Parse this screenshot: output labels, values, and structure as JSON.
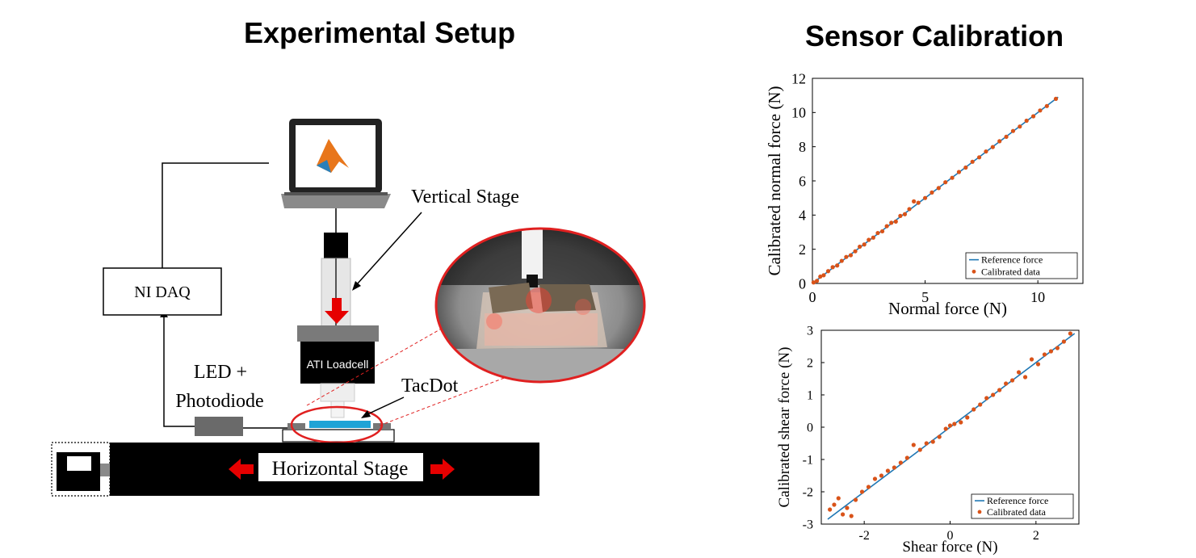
{
  "headings": {
    "setup": "Experimental Setup",
    "calibration": "Sensor Calibration"
  },
  "setup_labels": {
    "vertical_stage": "Vertical Stage",
    "ni_daq": "NI DAQ",
    "led_line1": "LED +",
    "led_line2": "Photodiode",
    "ati_loadcell": "ATI Loadcell",
    "tacdot": "TacDot",
    "horizontal_stage": "Horizontal Stage"
  },
  "icons": [
    "matlab-logo-icon",
    "down-arrow-icon",
    "left-arrow-icon",
    "right-arrow-icon",
    "motor-icon"
  ],
  "colors": {
    "reference_line": "#1f77b4",
    "calibrated_points": "#d95319",
    "arrow_red": "#e60000",
    "tacdot_blue": "#1fa3d6",
    "callout_red": "#e02020"
  },
  "chart_data": [
    {
      "type": "scatter",
      "xlabel": "Normal force (N)",
      "ylabel": "Calibrated normal force (N)",
      "xlim": [
        0,
        12
      ],
      "ylim": [
        0,
        12
      ],
      "xticks": [
        "0",
        "5",
        "10"
      ],
      "xtick_values": [
        0,
        5,
        10
      ],
      "yticks": [
        "0",
        "2",
        "4",
        "6",
        "8",
        "10",
        "12"
      ],
      "ytick_values": [
        0,
        2,
        4,
        6,
        8,
        10,
        12
      ],
      "legend_position": "bottom-right",
      "series": [
        {
          "name": "Reference force",
          "kind": "line",
          "x": [
            0,
            10.9
          ],
          "y": [
            0,
            10.9
          ]
        },
        {
          "name": "Calibrated data",
          "kind": "points",
          "x": [
            0.05,
            0.2,
            0.35,
            0.5,
            0.7,
            0.9,
            1.1,
            1.3,
            1.5,
            1.7,
            1.9,
            2.1,
            2.3,
            2.5,
            2.7,
            2.9,
            3.1,
            3.3,
            3.5,
            3.7,
            3.9,
            4.1,
            4.3,
            4.5,
            4.7,
            5.0,
            5.3,
            5.6,
            5.9,
            6.2,
            6.5,
            6.8,
            7.1,
            7.4,
            7.7,
            8.0,
            8.3,
            8.6,
            8.9,
            9.2,
            9.5,
            9.8,
            10.1,
            10.4,
            10.8
          ],
          "y": [
            0.06,
            0.15,
            0.4,
            0.48,
            0.72,
            0.95,
            1.05,
            1.32,
            1.55,
            1.65,
            1.88,
            2.15,
            2.28,
            2.55,
            2.68,
            2.95,
            3.05,
            3.35,
            3.55,
            3.62,
            3.95,
            4.05,
            4.35,
            4.8,
            4.72,
            5.0,
            5.32,
            5.58,
            5.92,
            6.18,
            6.52,
            6.78,
            7.12,
            7.38,
            7.72,
            7.98,
            8.32,
            8.58,
            8.92,
            9.18,
            9.52,
            9.78,
            10.12,
            10.38,
            10.8
          ]
        }
      ]
    },
    {
      "type": "scatter",
      "xlabel": "Shear force (N)",
      "ylabel": "Calibrated shear force (N)",
      "xlim": [
        -3,
        3
      ],
      "ylim": [
        -3,
        3
      ],
      "xticks": [
        "-2",
        "0",
        "2"
      ],
      "xtick_values": [
        -2,
        0,
        2
      ],
      "yticks": [
        "-3",
        "-2",
        "-1",
        "0",
        "1",
        "2",
        "3"
      ],
      "ytick_values": [
        -3,
        -2,
        -1,
        0,
        1,
        2,
        3
      ],
      "legend_position": "bottom-right",
      "series": [
        {
          "name": "Reference force",
          "kind": "line",
          "x": [
            -2.85,
            2.9
          ],
          "y": [
            -2.85,
            2.9
          ]
        },
        {
          "name": "Calibrated data",
          "kind": "points",
          "x": [
            -2.8,
            -2.7,
            -2.6,
            -2.5,
            -2.4,
            -2.3,
            -2.2,
            -2.05,
            -1.9,
            -1.75,
            -1.6,
            -1.45,
            -1.3,
            -1.15,
            -1.0,
            -0.85,
            -0.7,
            -0.55,
            -0.4,
            -0.25,
            -0.1,
            0.0,
            0.1,
            0.25,
            0.4,
            0.55,
            0.7,
            0.85,
            1.0,
            1.15,
            1.3,
            1.45,
            1.6,
            1.75,
            1.9,
            2.05,
            2.2,
            2.35,
            2.5,
            2.65,
            2.8
          ],
          "y": [
            -2.55,
            -2.4,
            -2.2,
            -2.7,
            -2.5,
            -2.75,
            -2.25,
            -2.0,
            -1.85,
            -1.6,
            -1.5,
            -1.35,
            -1.25,
            -1.1,
            -0.95,
            -0.55,
            -0.7,
            -0.5,
            -0.45,
            -0.3,
            -0.05,
            0.05,
            0.1,
            0.15,
            0.3,
            0.55,
            0.7,
            0.9,
            1.0,
            1.15,
            1.35,
            1.45,
            1.7,
            1.55,
            2.1,
            1.95,
            2.25,
            2.35,
            2.45,
            2.65,
            2.9
          ]
        }
      ]
    }
  ]
}
